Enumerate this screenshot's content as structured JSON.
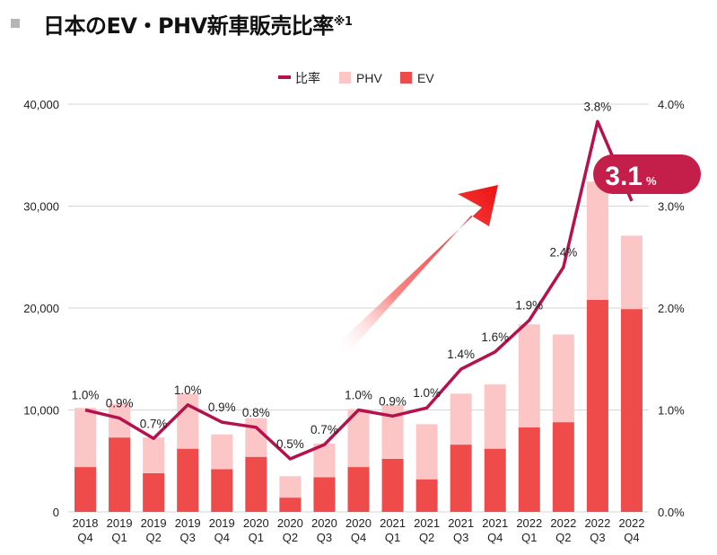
{
  "page": {
    "title": "日本のEV・PHV新車販売比率",
    "title_note": "※1"
  },
  "chart_data": {
    "type": "bar",
    "stacked": true,
    "categories": [
      [
        "2018",
        "Q4"
      ],
      [
        "2019",
        "Q1"
      ],
      [
        "2019",
        "Q2"
      ],
      [
        "2019",
        "Q3"
      ],
      [
        "2019",
        "Q4"
      ],
      [
        "2020",
        "Q1"
      ],
      [
        "2020",
        "Q2"
      ],
      [
        "2020",
        "Q3"
      ],
      [
        "2020",
        "Q4"
      ],
      [
        "2021",
        "Q1"
      ],
      [
        "2021",
        "Q2"
      ],
      [
        "2021",
        "Q3"
      ],
      [
        "2021",
        "Q4"
      ],
      [
        "2022",
        "Q1"
      ],
      [
        "2022",
        "Q2"
      ],
      [
        "2022",
        "Q3"
      ],
      [
        "2022",
        "Q4"
      ]
    ],
    "series": [
      {
        "name": "EV",
        "color": "#f04b4b",
        "values": [
          4400,
          7300,
          3800,
          6200,
          4200,
          5400,
          1400,
          3400,
          4400,
          5200,
          3200,
          6600,
          6200,
          8300,
          8800,
          20800,
          19900
        ]
      },
      {
        "name": "PHV",
        "color": "#fdc6c6",
        "values": [
          5800,
          3300,
          3500,
          5400,
          3400,
          3800,
          2100,
          3300,
          5700,
          5300,
          5400,
          5000,
          6300,
          10100,
          8600,
          11600,
          7200
        ]
      }
    ],
    "line": {
      "name": "比率",
      "color": "#b5124d",
      "values": [
        1.0,
        0.92,
        0.72,
        1.05,
        0.88,
        0.83,
        0.52,
        0.66,
        1.0,
        0.94,
        1.02,
        1.4,
        1.57,
        1.88,
        2.4,
        3.83,
        3.05
      ],
      "labels": [
        "1.0%",
        "0.9%",
        "0.7%",
        "1.0%",
        "0.9%",
        "0.8%",
        "0.5%",
        "0.7%",
        "1.0%",
        "0.9%",
        "1.0%",
        "1.4%",
        "1.6%",
        "1.9%",
        "2.4%",
        "3.8%",
        ""
      ]
    },
    "y_left": {
      "min": 0,
      "max": 40000,
      "ticks": [
        "0",
        "10,000",
        "20,000",
        "30,000",
        "40,000"
      ]
    },
    "y_right": {
      "min": 0,
      "max": 4.0,
      "ticks": [
        "0.0%",
        "1.0%",
        "2.0%",
        "3.0%",
        "4.0%"
      ]
    },
    "legend": {
      "position": "top-center",
      "items": [
        "比率",
        "PHV",
        "EV"
      ]
    },
    "callout": {
      "value": "3.1",
      "unit": "%",
      "color": "#c41e4a"
    },
    "grid": true
  }
}
